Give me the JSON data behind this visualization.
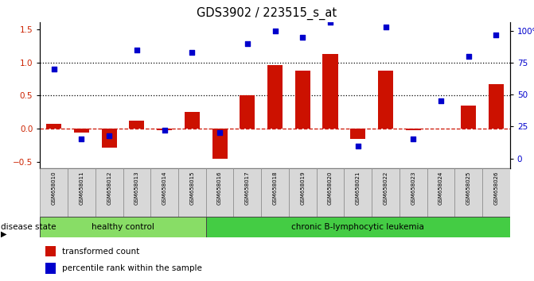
{
  "title": "GDS3902 / 223515_s_at",
  "samples": [
    "GSM658010",
    "GSM658011",
    "GSM658012",
    "GSM658013",
    "GSM658014",
    "GSM658015",
    "GSM658016",
    "GSM658017",
    "GSM658018",
    "GSM658019",
    "GSM658020",
    "GSM658021",
    "GSM658022",
    "GSM658023",
    "GSM658024",
    "GSM658025",
    "GSM658026"
  ],
  "bar_values": [
    0.08,
    -0.06,
    -0.28,
    0.12,
    -0.02,
    0.25,
    -0.45,
    0.5,
    0.96,
    0.88,
    1.12,
    -0.15,
    0.87,
    -0.02,
    0.0,
    0.35,
    0.67
  ],
  "dot_values": [
    70,
    15,
    18,
    85,
    22,
    83,
    20,
    90,
    100,
    95,
    107,
    10,
    103,
    15,
    45,
    80,
    97
  ],
  "ylim_left": [
    -0.6,
    1.6
  ],
  "ylim_right": [
    -8,
    106.67
  ],
  "yticks_left": [
    -0.5,
    0.0,
    0.5,
    1.0,
    1.5
  ],
  "yticks_right": [
    0,
    25,
    50,
    75,
    100
  ],
  "yticklabels_right": [
    "0",
    "25",
    "50",
    "75",
    "100%"
  ],
  "hline_values": [
    0.5,
    1.0
  ],
  "bar_color": "#cc1100",
  "dot_color": "#0000cc",
  "healthy_count": 6,
  "cll_count": 11,
  "disease_groups": [
    {
      "label": "healthy control",
      "color": "#88dd66"
    },
    {
      "label": "chronic B-lymphocytic leukemia",
      "color": "#44cc44"
    }
  ],
  "disease_state_label": "disease state",
  "legend_bar_label": "transformed count",
  "legend_dot_label": "percentile rank within the sample",
  "bg_color": "#ffffff",
  "tick_label_color_left": "#cc2200",
  "tick_label_color_right": "#0000cc",
  "bar_width": 0.55,
  "zero_line_color": "#cc1100",
  "cell_bg": "#d8d8d8"
}
